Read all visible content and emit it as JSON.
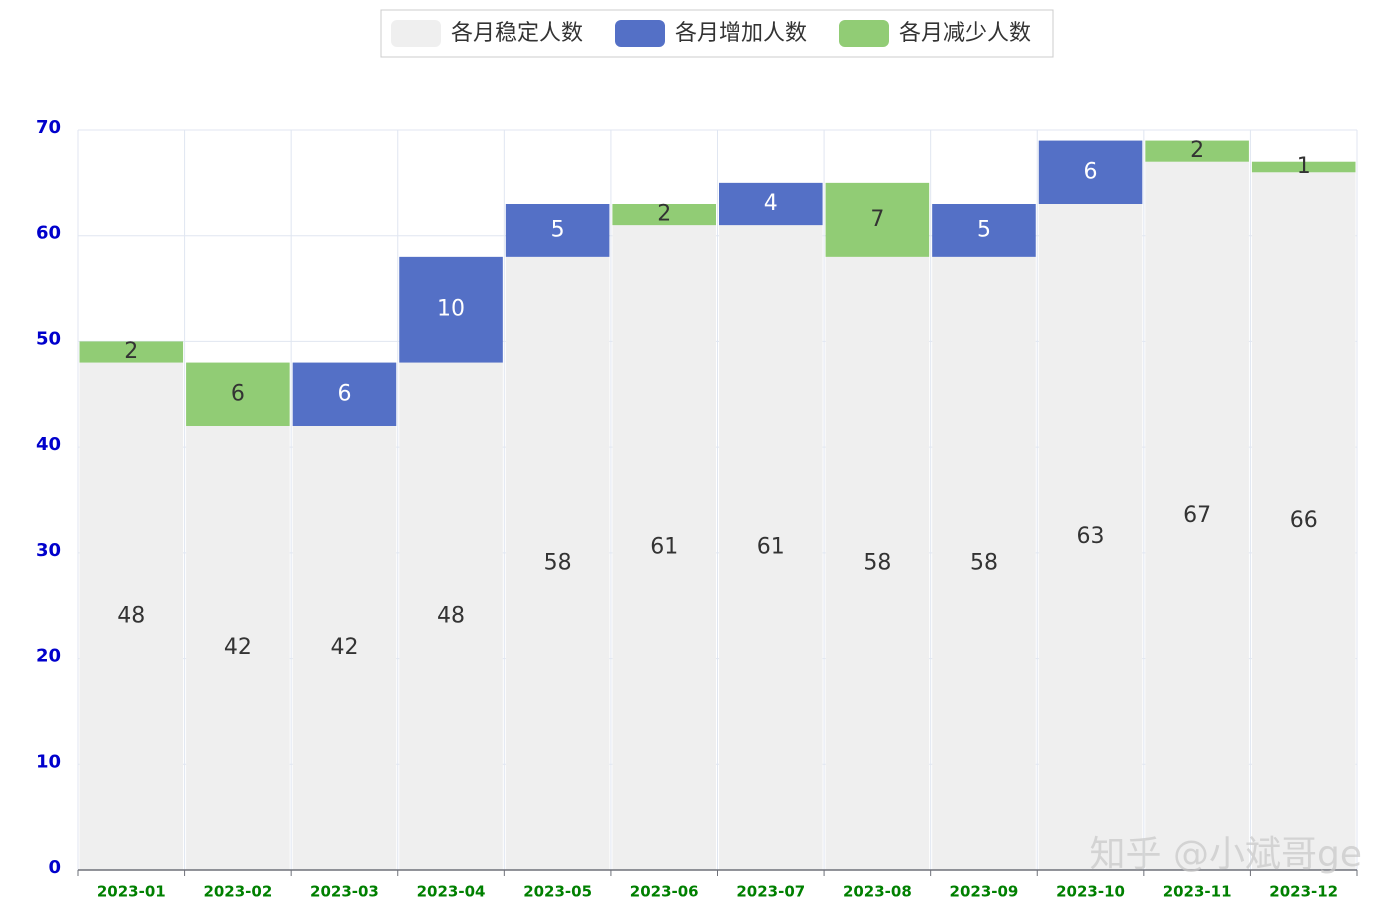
{
  "chart_data": {
    "type": "stacked_bar",
    "categories": [
      "2023-01",
      "2023-02",
      "2023-03",
      "2023-04",
      "2023-05",
      "2023-06",
      "2023-07",
      "2023-08",
      "2023-09",
      "2023-10",
      "2023-11",
      "2023-12"
    ],
    "series": [
      {
        "name": "各月稳定人数",
        "color": "#efefef",
        "label_color": "#333333",
        "values": [
          48,
          42,
          42,
          48,
          58,
          61,
          61,
          58,
          58,
          63,
          67,
          66
        ]
      },
      {
        "name": "各月增加人数",
        "color": "#5470c6",
        "label_color": "#ffffff",
        "values": [
          null,
          null,
          6,
          10,
          5,
          null,
          4,
          null,
          5,
          6,
          null,
          null
        ]
      },
      {
        "name": "各月减少人数",
        "color": "#91cc75",
        "label_color": "#333333",
        "values": [
          2,
          6,
          null,
          null,
          null,
          2,
          null,
          7,
          null,
          null,
          2,
          1
        ]
      }
    ],
    "ylim": [
      0,
      70
    ],
    "yticks": [
      0,
      10,
      20,
      30,
      40,
      50,
      60,
      70
    ],
    "grid": true,
    "ytick_color": "#0000cc",
    "xtick_color": "#008000",
    "legend": "top",
    "watermark": "知乎 @小斌哥ge"
  }
}
